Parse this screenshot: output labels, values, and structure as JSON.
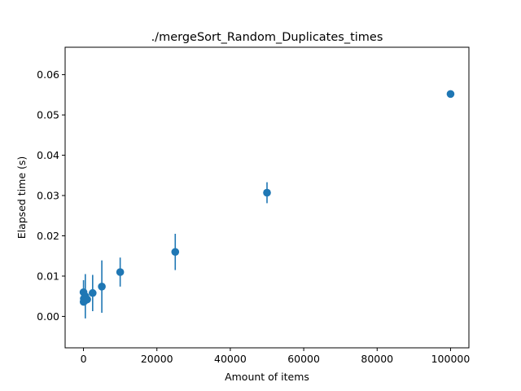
{
  "chart_data": {
    "type": "scatter",
    "title": "./mergeSort_Random_Duplicates_times",
    "xlabel": "Amount of items",
    "ylabel": "Elapsed time (s)",
    "xlim": [
      -5000,
      105000
    ],
    "ylim": [
      -0.0078,
      0.0668
    ],
    "xticks": [
      0,
      20000,
      40000,
      60000,
      80000,
      100000
    ],
    "xtick_labels": [
      "0",
      "20000",
      "40000",
      "60000",
      "80000",
      "100000"
    ],
    "yticks": [
      0.0,
      0.01,
      0.02,
      0.03,
      0.04,
      0.05,
      0.06
    ],
    "ytick_labels": [
      "0.00",
      "0.01",
      "0.02",
      "0.03",
      "0.04",
      "0.05",
      "0.06"
    ],
    "grid": false,
    "color": "#1f77b4",
    "points": [
      {
        "x": 10,
        "y": 0.006,
        "err": 0.003
      },
      {
        "x": 50,
        "y": 0.0036,
        "err": 0.0008
      },
      {
        "x": 100,
        "y": 0.0044,
        "err": 0.001
      },
      {
        "x": 250,
        "y": 0.004,
        "err": 0.001
      },
      {
        "x": 500,
        "y": 0.005,
        "err": 0.0055
      },
      {
        "x": 1000,
        "y": 0.0042,
        "err": 0.001
      },
      {
        "x": 2500,
        "y": 0.0058,
        "err": 0.0045
      },
      {
        "x": 5000,
        "y": 0.0074,
        "err": 0.0065
      },
      {
        "x": 10000,
        "y": 0.011,
        "err": 0.0036
      },
      {
        "x": 25000,
        "y": 0.016,
        "err": 0.0045
      },
      {
        "x": 50000,
        "y": 0.0307,
        "err": 0.0026
      },
      {
        "x": 100000,
        "y": 0.0552,
        "err": 0.0002
      }
    ]
  }
}
